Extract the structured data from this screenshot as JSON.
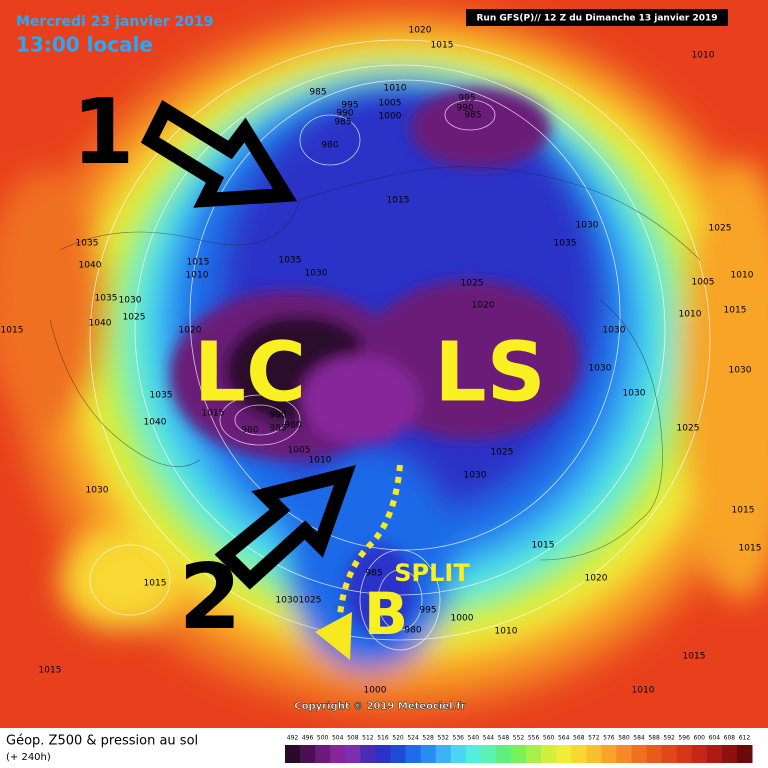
{
  "header": {
    "date": "Mercredi 23 janvier 2019",
    "time": "13:00 locale",
    "run": "Run GFS(P)// 12 Z du Dimanche 13 janvier 2019"
  },
  "annotations": {
    "arrow_1": "1",
    "arrow_2": "2",
    "lc": "LC",
    "ls": "LS",
    "b": "B",
    "split": "SPLIT"
  },
  "pressure_labels": [
    1020,
    1015,
    1010,
    985,
    995,
    990,
    985,
    1010,
    1005,
    1000,
    995,
    990,
    985,
    980,
    1015,
    1030,
    1035,
    1025,
    1035,
    1040,
    1015,
    1010,
    1035,
    1030,
    1025,
    1020,
    1035,
    1030,
    1040,
    1025,
    1020,
    1015,
    1010,
    1005,
    1010,
    1015,
    1030,
    1035,
    1040,
    1015,
    990,
    985,
    980,
    980,
    1005,
    1010,
    1030,
    1030,
    1030,
    1025,
    1025,
    1030,
    1030,
    1015,
    1015,
    1015,
    1020,
    1015,
    985,
    995,
    980,
    1000,
    1010,
    1015,
    1015,
    1010,
    1000,
    1030,
    1025
  ],
  "copyright": "Copyright © 2019 Meteociel.fr",
  "legend": {
    "title": "Géop. Z500 & pression au sol",
    "subtitle": "(+ 240h)",
    "ticks": [
      492,
      496,
      500,
      504,
      508,
      512,
      516,
      520,
      524,
      528,
      532,
      536,
      540,
      544,
      548,
      552,
      556,
      560,
      564,
      568,
      572,
      576,
      580,
      584,
      588,
      592,
      596,
      600,
      604,
      608,
      612
    ],
    "colors": [
      "#2a0a2a",
      "#4a1050",
      "#6a1a78",
      "#86269a",
      "#7a2fb0",
      "#4a2cb8",
      "#2a32c8",
      "#1e4ad8",
      "#1e6ae8",
      "#2a8cf0",
      "#3ab2f4",
      "#4ad6f0",
      "#52eedc",
      "#58f4b0",
      "#5cf080",
      "#7cf05a",
      "#a8f048",
      "#d0f03c",
      "#f0ec38",
      "#f8d830",
      "#f8c02a",
      "#f8a428",
      "#f68a24",
      "#f07020",
      "#ea5a1e",
      "#e4461c",
      "#d8341a",
      "#c82418",
      "#b01814",
      "#901010",
      "#6a0a0a"
    ]
  }
}
